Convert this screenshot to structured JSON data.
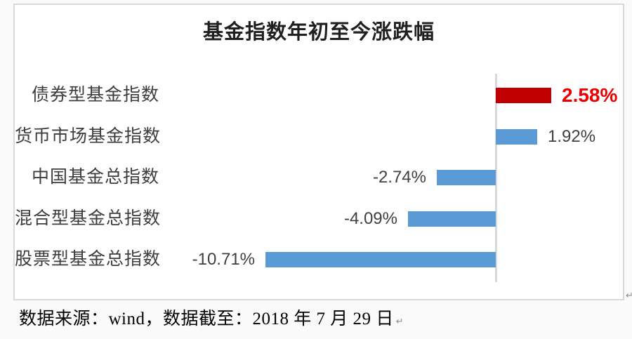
{
  "chart_data": {
    "type": "bar",
    "orientation": "horizontal",
    "title": "基金指数年初至今涨跌幅",
    "categories": [
      "债券型基金指数",
      "货币市场基金指数",
      "中国基金总指数",
      "混合型基金总指数",
      "股票型基金总指数"
    ],
    "values": [
      2.58,
      1.92,
      -2.74,
      -4.09,
      -10.71
    ],
    "value_labels": [
      "2.58%",
      "1.92%",
      "-2.74%",
      "-4.09%",
      "-10.71%"
    ],
    "highlight_index": 0,
    "xlabel": "",
    "ylabel": "",
    "xlim": [
      -12,
      6
    ],
    "grid": false,
    "legend": false,
    "axis": "zero-baseline-vertical"
  },
  "colors": {
    "page_bg": "#fafafa",
    "box_bg": "#ffffff",
    "box_border": "#d9d9d9",
    "axis_line": "#d9d9d9",
    "bar_positive": "#5b9bd5",
    "bar_highlight": "#c00000",
    "value_text": "#404040",
    "value_text_highlight": "#ea0000",
    "category_text": "#3d3d3d",
    "title_text": "#1f1f1f"
  },
  "footer": {
    "caption": "数据来源：wind，数据截至：2018 年 7 月 29 日",
    "paragraph_mark": "↵"
  }
}
